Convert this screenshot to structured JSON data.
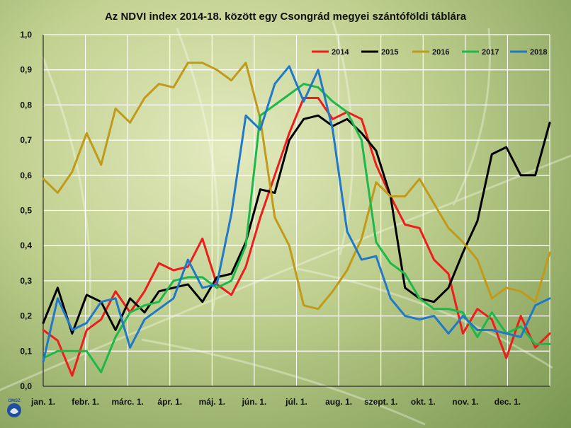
{
  "chart_data": {
    "type": "line",
    "title": "Az NDVI index 2014-18. között egy Csongrád megyei szántóföldi táblára",
    "xlabel": "",
    "ylabel": "",
    "ylim": [
      0,
      1
    ],
    "yticks": [
      "0,0",
      "0,1",
      "0,2",
      "0,3",
      "0,4",
      "0,5",
      "0,6",
      "0,7",
      "0,8",
      "0,9",
      "1,0"
    ],
    "x_tick_labels": [
      "jan. 1.",
      "febr. 1.",
      "márc. 1.",
      "ápr. 1.",
      "máj. 1.",
      "jún. 1.",
      "júl. 1.",
      "aug. 1.",
      "szept. 1.",
      "okt. 1.",
      "nov. 1.",
      "dec. 1."
    ],
    "grid": true,
    "legend_position": "top-right",
    "series": [
      {
        "name": "2014",
        "color": "#ee1c1c",
        "values": [
          0.16,
          0.13,
          0.03,
          0.16,
          0.19,
          0.27,
          0.21,
          0.27,
          0.35,
          0.33,
          0.34,
          0.42,
          0.29,
          0.26,
          0.34,
          0.48,
          0.6,
          0.72,
          0.82,
          0.82,
          0.76,
          0.78,
          0.76,
          0.63,
          0.54,
          0.46,
          0.45,
          0.36,
          0.32,
          0.15,
          0.22,
          0.19,
          0.08,
          0.2,
          0.11,
          0.15
        ]
      },
      {
        "name": "2015",
        "color": "#000000",
        "values": [
          0.18,
          0.28,
          0.15,
          0.26,
          0.24,
          0.16,
          0.25,
          0.21,
          0.27,
          0.28,
          0.29,
          0.24,
          0.31,
          0.32,
          0.41,
          0.56,
          0.55,
          0.7,
          0.76,
          0.77,
          0.74,
          0.76,
          0.72,
          0.67,
          0.54,
          0.28,
          0.25,
          0.24,
          0.28,
          0.38,
          0.47,
          0.66,
          0.68,
          0.6,
          0.6,
          0.75
        ]
      },
      {
        "name": "2016",
        "color": "#c19a1a",
        "values": [
          0.59,
          0.55,
          0.61,
          0.72,
          0.63,
          0.79,
          0.75,
          0.82,
          0.86,
          0.85,
          0.92,
          0.92,
          0.9,
          0.87,
          0.92,
          0.76,
          0.48,
          0.4,
          0.23,
          0.22,
          0.27,
          0.33,
          0.42,
          0.58,
          0.54,
          0.54,
          0.59,
          0.52,
          0.45,
          0.41,
          0.36,
          0.25,
          0.28,
          0.27,
          0.24,
          0.38
        ]
      },
      {
        "name": "2017",
        "color": "#1db84a",
        "values": [
          0.08,
          0.1,
          0.1,
          0.1,
          0.04,
          0.14,
          0.21,
          0.23,
          0.24,
          0.3,
          0.31,
          0.31,
          0.28,
          0.3,
          0.4,
          0.77,
          0.8,
          0.83,
          0.86,
          0.85,
          0.81,
          0.78,
          0.7,
          0.41,
          0.35,
          0.32,
          0.25,
          0.22,
          0.22,
          0.21,
          0.14,
          0.21,
          0.15,
          0.17,
          0.12,
          0.12
        ]
      },
      {
        "name": "2018",
        "color": "#1f78c8",
        "values": [
          0.07,
          0.25,
          0.16,
          0.18,
          0.24,
          0.25,
          0.11,
          0.19,
          0.22,
          0.25,
          0.36,
          0.28,
          0.29,
          0.49,
          0.77,
          0.73,
          0.86,
          0.91,
          0.81,
          0.9,
          0.73,
          0.44,
          0.36,
          0.37,
          0.25,
          0.2,
          0.19,
          0.2,
          0.15,
          0.2,
          0.16,
          0.16,
          0.15,
          0.14,
          0.23,
          0.25
        ]
      }
    ]
  },
  "logo": {
    "text": "OMSZ"
  }
}
